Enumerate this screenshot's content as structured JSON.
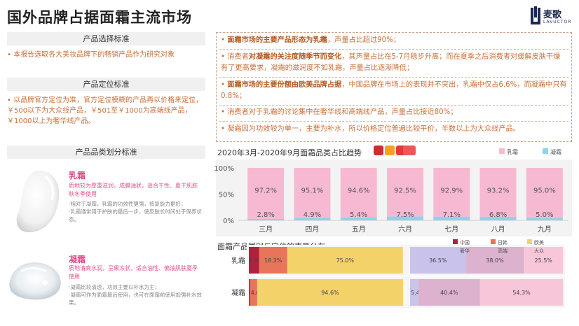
{
  "page": {
    "title": "国外品牌占据面霜主流市场"
  },
  "logo": {
    "name": "麦歌",
    "en": "LAVUCTOR"
  },
  "left": {
    "selection": {
      "heading": "产品选择标准",
      "text": "• 本报告选取各大美妆品牌下的畅销产品作为研究对象"
    },
    "positioning": {
      "heading": "产品定位标准",
      "text": "• 以品牌官方定位为准，官方定位模糊的产品再以价格来定位，￥500以下为大众线产品，￥501至￥1000为高端线产品，￥1000以上为奢华线产品。"
    },
    "category": {
      "heading": "产品品类划分标准",
      "items": [
        {
          "name": "乳霜",
          "desc": "质地较为厚重滋润，成膜油状，适合干性、夏干肌肤秋冬季使用",
          "notes": [
            "·相对于凝霜，乳霜的功效性更强，修复能力更好；",
            "·乳霜通常用于护肤的最后一步，使皮肤长时间处于保养状态。"
          ]
        },
        {
          "name": "凝霜",
          "desc": "质地清爽水润，呈果冻状，适合油性、偏油肌肤夏季使用",
          "notes": [
            "·凝霜比较清透，功效主要以补水为主；",
            "·凝霜可作为面霜最后使用，也可在面霜前使用加强补水效果。"
          ]
        }
      ]
    }
  },
  "summary": [
    {
      "bold": "面霜市场的主要产品形态为乳霜",
      "prefix": "• ",
      "rest": "，声量占比超过90%；"
    },
    {
      "prefix": "• 消费者",
      "bold": "对凝霜的关注度随季节而变化",
      "rest": "，其声量占比在5-7月稳步升高；而在夏季之后消费者对缓解皮肤干燥有了更高要求，凝霜的滋润度不如乳霜，声量占比逐渐降低；"
    },
    {
      "prefix": "• ",
      "bold": "面霜市场的主要份额由欧美品牌占据",
      "rest": "，中国品牌在市场上的表现并不突出，乳霜中仅占6.6%，而凝霜中只有0.8%；"
    },
    {
      "prefix": "• ",
      "bold": "",
      "rest": "消费者对于乳霜的讨论集中在奢华线和高端线产品，声量占比接近80%；"
    },
    {
      "prefix": "• ",
      "bold": "",
      "rest": "凝霜因为功效较为单一，主要为补水，所以价格定位普遍比较平价，半数以上为大众线产品。"
    }
  ],
  "chart_data": [
    {
      "type": "bar",
      "stacked": true,
      "title": "2020年3月-2020年9月面霜品类占比趋势",
      "categories": [
        "三月",
        "四月",
        "五月",
        "六月",
        "七月",
        "八月",
        "九月"
      ],
      "series": [
        {
          "name": "乳霜",
          "values": [
            97.2,
            95.1,
            94.6,
            92.5,
            92.9,
            93.2,
            95.0
          ],
          "color": "#f7b9d2"
        },
        {
          "name": "凝霜",
          "values": [
            2.8,
            4.9,
            5.4,
            7.5,
            7.1,
            6.8,
            5.0
          ],
          "color": "#8fd3e6"
        }
      ],
      "yticks": [
        "100%",
        "50%",
        "0%"
      ],
      "ylim": [
        0,
        100
      ],
      "legend": "top-right"
    },
    {
      "type": "bar",
      "stacked": true,
      "orientation": "horizontal",
      "title": "面霜产品国别与定位的声量分布",
      "categories": [
        "乳霜",
        "凝霜"
      ],
      "groups": [
        {
          "name": "国别",
          "series": [
            {
              "name": "中国",
              "values": [
                6.6,
                0.8
              ],
              "color": "#b0213f"
            },
            {
              "name": "日韩",
              "values": [
                18.3,
                4.6
              ],
              "color": "#e8745a"
            },
            {
              "name": "欧美",
              "values": [
                75.0,
                94.6
              ],
              "color": "#f3d26a"
            }
          ]
        },
        {
          "name": "定位",
          "series": [
            {
              "name": "奢华",
              "values": [
                36.5,
                5.4
              ],
              "color": "#c9c3ec"
            },
            {
              "name": "高端",
              "values": [
                38.0,
                40.4
              ],
              "color": "#dcb2cf"
            },
            {
              "name": "大众",
              "values": [
                25.5,
                54.3
              ],
              "color": "#f8c6d9"
            }
          ]
        }
      ],
      "labels": [
        [
          "6.6%",
          "18.3%",
          "75.0%",
          "36.5%",
          "38.0%",
          "25.5%"
        ],
        [
          "0.8%",
          "4.6%",
          "94.6%",
          "5.4%",
          "40.4%",
          "54.3%"
        ]
      ],
      "legend": "top-right"
    }
  ]
}
